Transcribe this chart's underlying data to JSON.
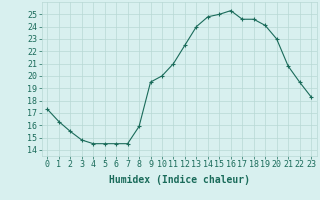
{
  "x": [
    0,
    1,
    2,
    3,
    4,
    5,
    6,
    7,
    8,
    9,
    10,
    11,
    12,
    13,
    14,
    15,
    16,
    17,
    18,
    19,
    20,
    21,
    22,
    23
  ],
  "y": [
    17.3,
    16.3,
    15.5,
    14.8,
    14.5,
    14.5,
    14.5,
    14.5,
    15.9,
    19.5,
    20.0,
    21.0,
    22.5,
    24.0,
    24.8,
    25.0,
    25.3,
    24.6,
    24.6,
    24.1,
    23.0,
    20.8,
    19.5,
    18.3
  ],
  "line_color": "#1a6b5a",
  "marker": "+",
  "bg_color": "#d8f0ef",
  "grid_color": "#b8d8d4",
  "xlabel": "Humidex (Indice chaleur)",
  "xlabel_fontsize": 7,
  "ylabel_ticks": [
    14,
    15,
    16,
    17,
    18,
    19,
    20,
    21,
    22,
    23,
    24,
    25
  ],
  "ylim": [
    13.5,
    26.0
  ],
  "xlim": [
    -0.5,
    23.5
  ],
  "tick_fontsize": 6
}
